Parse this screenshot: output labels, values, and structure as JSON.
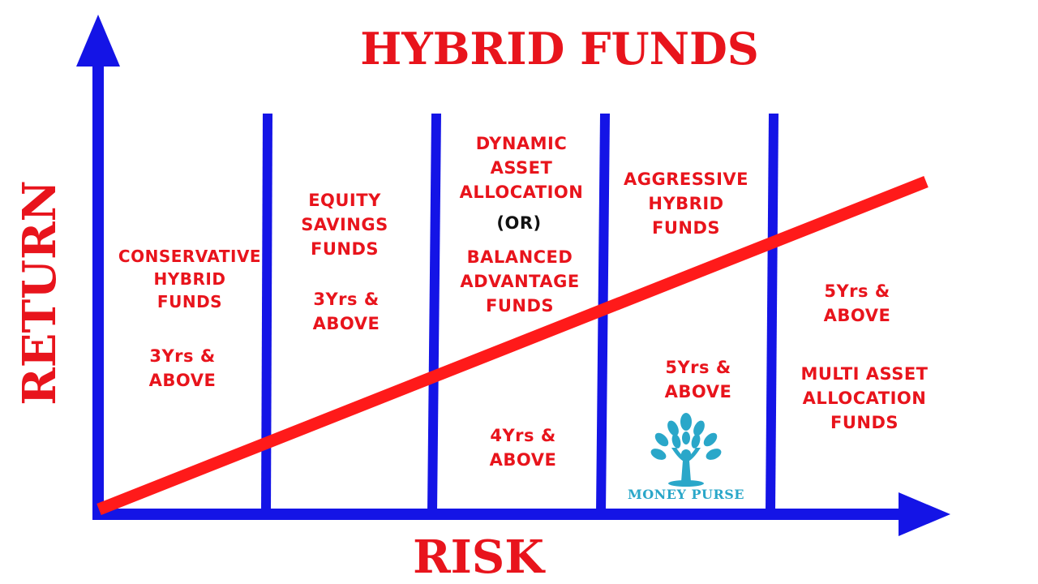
{
  "title": "HYBRID FUNDS",
  "x_axis_label": "RISK",
  "y_axis_label": "RETURN",
  "colors": {
    "axis": "#1414e6",
    "trend_line": "#ff1a1a",
    "text": "#e8141c",
    "or_text": "#111111",
    "logo": "#2aa7c9"
  },
  "categories": [
    {
      "name": "CONSERVATIVE\nHYBRID\nFUNDS",
      "horizon": "3Yrs &\nABOVE"
    },
    {
      "name": "EQUITY\nSAVINGS\nFUNDS",
      "horizon": "3Yrs &\nABOVE"
    },
    {
      "name_top": "DYNAMIC\nASSET\nALLOCATION",
      "or": "(OR)",
      "name_bottom": "BALANCED\nADVANTAGE\nFUNDS",
      "horizon": "4Yrs &\nABOVE"
    },
    {
      "name": "AGGRESSIVE\nHYBRID\nFUNDS",
      "horizon": "5Yrs &\nABOVE"
    },
    {
      "name": "MULTI ASSET\nALLOCATION\nFUNDS",
      "horizon": "5Yrs &\nABOVE"
    }
  ],
  "logo": {
    "text": "MONEY PURSE",
    "icon": "tree-person-icon"
  }
}
